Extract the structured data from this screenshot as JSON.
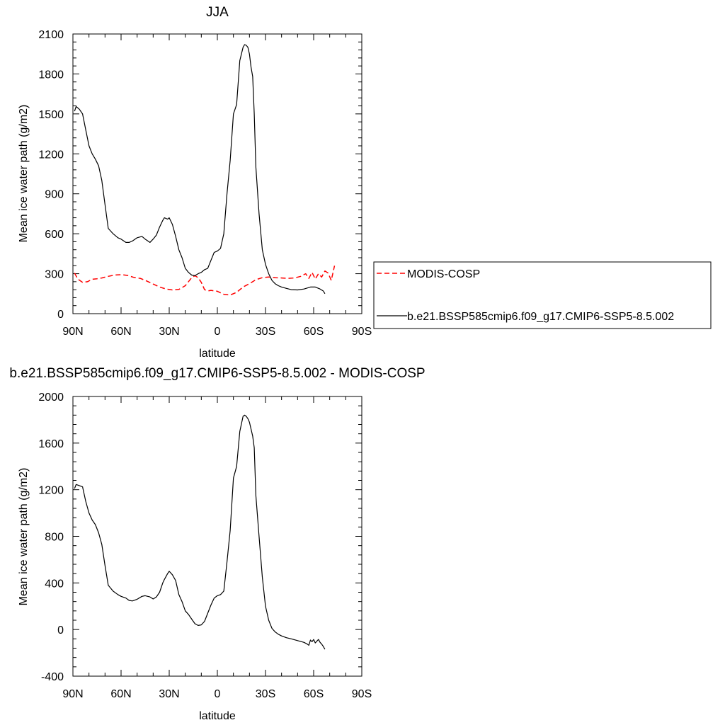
{
  "chart_data": [
    {
      "type": "line",
      "title": "JJA",
      "xlabel": "latitude",
      "ylabel": "Mean ice water path (g/m2)",
      "xlim": [
        90,
        -90
      ],
      "ylim": [
        0,
        2100
      ],
      "x_tick_values": [
        90,
        60,
        30,
        0,
        -30,
        -60,
        -90
      ],
      "x_tick_labels": [
        "90N",
        "60N",
        "30N",
        "0",
        "30S",
        "60S",
        "90S"
      ],
      "y_tick_values": [
        0,
        300,
        600,
        900,
        1200,
        1500,
        1800,
        2100
      ],
      "y_tick_labels": [
        "0",
        "300",
        "600",
        "900",
        "1200",
        "1500",
        "1800",
        "2100"
      ],
      "legend_position": "right",
      "series": [
        {
          "name": "MODIS-COSP",
          "color": "#ff0000",
          "dash": "dashed",
          "x": [
            89,
            87,
            84,
            81,
            78,
            75,
            72,
            68,
            64,
            60,
            56,
            52,
            48,
            44,
            40,
            36,
            32,
            28,
            24,
            20,
            16,
            14,
            12,
            10,
            8,
            6,
            4,
            0,
            -4,
            -8,
            -12,
            -16,
            -20,
            -24,
            -28,
            -32,
            -36,
            -40,
            -44,
            -48,
            -52,
            -55,
            -57,
            -59,
            -61,
            -63,
            -65,
            -67,
            -69,
            -71,
            -73
          ],
          "y": [
            305,
            260,
            235,
            240,
            258,
            262,
            268,
            280,
            290,
            293,
            287,
            272,
            265,
            245,
            222,
            200,
            185,
            178,
            182,
            210,
            270,
            285,
            270,
            235,
            180,
            170,
            175,
            168,
            145,
            140,
            160,
            200,
            225,
            255,
            270,
            275,
            270,
            268,
            265,
            268,
            280,
            300,
            265,
            310,
            260,
            300,
            275,
            320,
            305,
            250,
            360
          ]
        },
        {
          "name": "b.e21.BSSP585cmip6.f09_g17.CMIP6-SSP5-8.5.002",
          "color": "#000000",
          "dash": "solid",
          "x": [
            89,
            88,
            86,
            84,
            82,
            80,
            78,
            76,
            74,
            72,
            70,
            68,
            65,
            62,
            60,
            57,
            55,
            53,
            50,
            47,
            45,
            42,
            40,
            38,
            36,
            34,
            33,
            31,
            30,
            28,
            26,
            24,
            22,
            20,
            18,
            16,
            14,
            12,
            10,
            8,
            6,
            4,
            2,
            0,
            -2,
            -4,
            -6,
            -8,
            -10,
            -12,
            -14,
            -16,
            -17,
            -18,
            -19,
            -20,
            -21,
            -22,
            -23,
            -24,
            -26,
            -28,
            -30,
            -32,
            -34,
            -36,
            -38,
            -40,
            -43,
            -46,
            -50,
            -54,
            -58,
            -61,
            -64,
            -66,
            -67
          ],
          "y": [
            1520,
            1555,
            1535,
            1500,
            1380,
            1260,
            1200,
            1160,
            1110,
            1000,
            820,
            640,
            600,
            570,
            560,
            535,
            535,
            545,
            570,
            580,
            560,
            535,
            560,
            590,
            650,
            700,
            720,
            710,
            720,
            670,
            580,
            480,
            420,
            340,
            310,
            290,
            285,
            300,
            310,
            330,
            340,
            400,
            460,
            470,
            490,
            600,
            900,
            1150,
            1500,
            1570,
            1900,
            2000,
            2020,
            2015,
            2000,
            1950,
            1850,
            1780,
            1500,
            1100,
            750,
            480,
            370,
            300,
            250,
            225,
            210,
            200,
            190,
            180,
            178,
            185,
            200,
            200,
            185,
            170,
            150
          ]
        }
      ]
    },
    {
      "type": "line",
      "title": "b.e21.BSSP585cmip6.f09_g17.CMIP6-SSP5-8.5.002 - MODIS-COSP",
      "xlabel": "latitude",
      "ylabel": "Mean ice water path (g/m2)",
      "xlim": [
        90,
        -90
      ],
      "ylim": [
        -400,
        2000
      ],
      "x_tick_values": [
        90,
        60,
        30,
        0,
        -30,
        -60,
        -90
      ],
      "x_tick_labels": [
        "90N",
        "60N",
        "30N",
        "0",
        "30S",
        "60S",
        "90S"
      ],
      "y_tick_values": [
        -400,
        0,
        400,
        800,
        1200,
        1600,
        2000
      ],
      "y_tick_labels": [
        "-400",
        "0",
        "400",
        "800",
        "1200",
        "1600",
        "2000"
      ],
      "series": [
        {
          "color": "#000000",
          "dash": "solid",
          "x": [
            89,
            88,
            86,
            84,
            82,
            80,
            78,
            76,
            74,
            72,
            70,
            68,
            65,
            62,
            60,
            57,
            55,
            53,
            50,
            47,
            45,
            42,
            40,
            38,
            36,
            34,
            33,
            31,
            30,
            28,
            26,
            24,
            22,
            20,
            18,
            16,
            14,
            12,
            10,
            8,
            6,
            4,
            2,
            0,
            -2,
            -4,
            -6,
            -8,
            -10,
            -12,
            -14,
            -16,
            -17,
            -18,
            -19,
            -20,
            -21,
            -22,
            -23,
            -24,
            -26,
            -28,
            -30,
            -32,
            -34,
            -36,
            -38,
            -40,
            -43,
            -46,
            -50,
            -54,
            -56,
            -57,
            -58,
            -59,
            -60,
            -61,
            -62,
            -63,
            -64,
            -65,
            -66,
            -67
          ],
          "y": [
            1210,
            1245,
            1235,
            1225,
            1100,
            1000,
            940,
            900,
            830,
            730,
            550,
            380,
            330,
            300,
            285,
            270,
            250,
            245,
            260,
            285,
            290,
            280,
            262,
            280,
            320,
            400,
            430,
            480,
            500,
            470,
            420,
            300,
            240,
            160,
            130,
            90,
            50,
            35,
            40,
            70,
            140,
            210,
            270,
            290,
            300,
            330,
            580,
            850,
            1300,
            1400,
            1700,
            1830,
            1840,
            1830,
            1810,
            1780,
            1720,
            1660,
            1560,
            1150,
            800,
            450,
            200,
            80,
            10,
            -20,
            -40,
            -55,
            -70,
            -80,
            -95,
            -110,
            -125,
            -135,
            -90,
            -105,
            -85,
            -115,
            -100,
            -85,
            -110,
            -125,
            -145,
            -170
          ]
        }
      ]
    }
  ]
}
